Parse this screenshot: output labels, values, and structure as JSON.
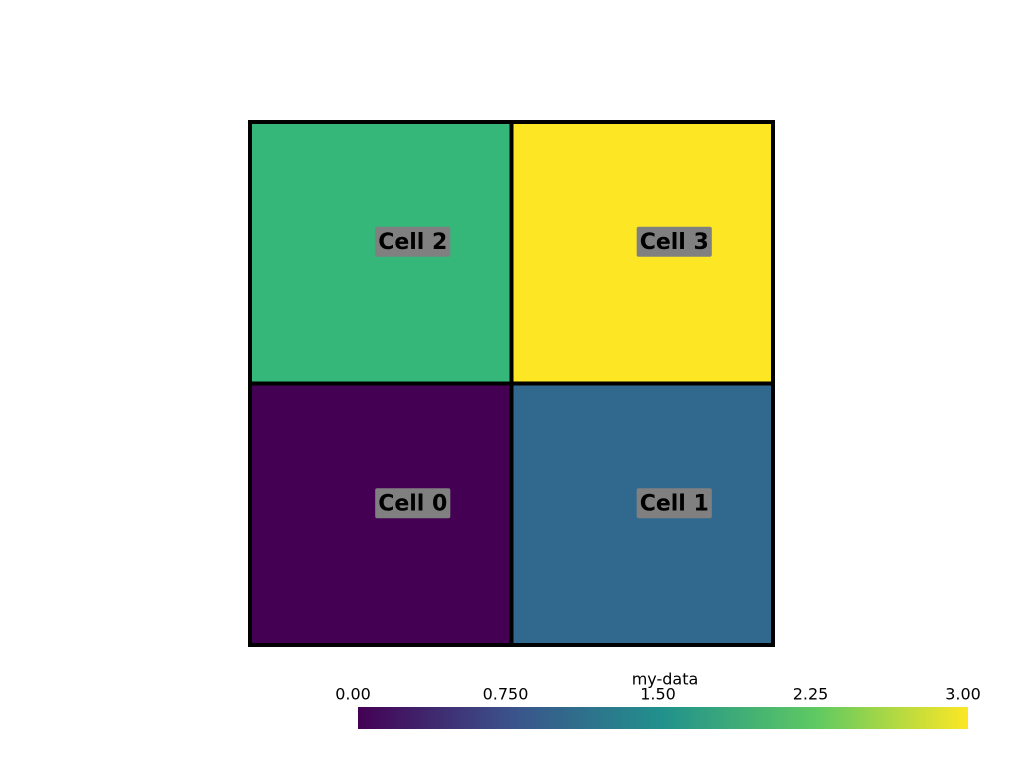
{
  "chart_data": {
    "type": "heatmap",
    "cells": [
      {
        "label": "Cell 0",
        "value": 0,
        "color": "#440154"
      },
      {
        "label": "Cell 1",
        "value": 1,
        "color": "#31688e"
      },
      {
        "label": "Cell 2",
        "value": 2,
        "color": "#35b779"
      },
      {
        "label": "Cell 3",
        "value": 3,
        "color": "#fde725"
      }
    ],
    "colorbar": {
      "title": "my-data",
      "lim": [
        0,
        3
      ],
      "ticks": [
        {
          "value": 0,
          "label": "0.00"
        },
        {
          "value": 0.75,
          "label": "0.750"
        },
        {
          "value": 1.5,
          "label": "1.50"
        },
        {
          "value": 2.25,
          "label": "2.25"
        },
        {
          "value": 3,
          "label": "3.00"
        }
      ],
      "colors": [
        "#440154",
        "#3b528b",
        "#21918c",
        "#5ec962",
        "#fde725"
      ]
    }
  }
}
